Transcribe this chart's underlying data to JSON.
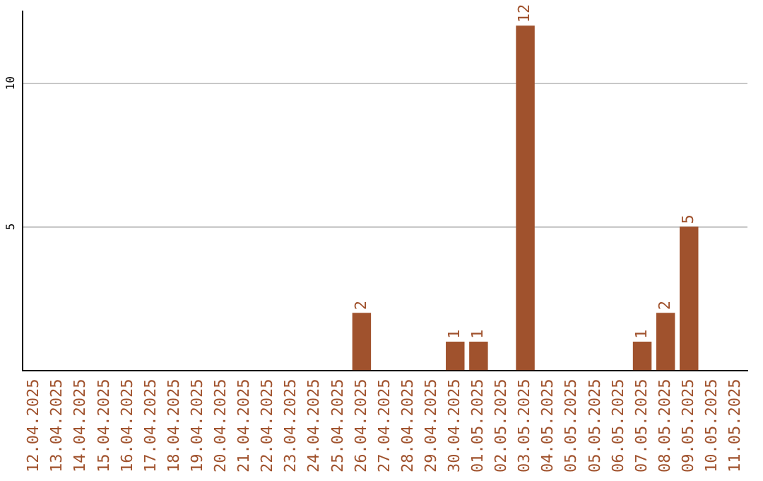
{
  "chart_data": {
    "type": "bar",
    "categories": [
      "12.04.2025",
      "13.04.2025",
      "14.04.2025",
      "15.04.2025",
      "16.04.2025",
      "17.04.2025",
      "18.04.2025",
      "19.04.2025",
      "20.04.2025",
      "21.04.2025",
      "22.04.2025",
      "23.04.2025",
      "24.04.2025",
      "25.04.2025",
      "26.04.2025",
      "27.04.2025",
      "28.04.2025",
      "29.04.2025",
      "30.04.2025",
      "01.05.2025",
      "02.05.2025",
      "03.05.2025",
      "04.05.2025",
      "05.05.2025",
      "05.05.2025",
      "06.05.2025",
      "07.05.2025",
      "08.05.2025",
      "09.05.2025",
      "10.05.2025",
      "11.05.2025"
    ],
    "values": [
      0,
      0,
      0,
      0,
      0,
      0,
      0,
      0,
      0,
      0,
      0,
      0,
      0,
      0,
      2,
      0,
      0,
      0,
      1,
      1,
      0,
      12,
      0,
      0,
      0,
      0,
      1,
      2,
      5,
      0,
      0
    ],
    "value_labels": [
      null,
      null,
      null,
      null,
      null,
      null,
      null,
      null,
      null,
      null,
      null,
      null,
      null,
      null,
      "2",
      null,
      null,
      null,
      "1",
      "1",
      null,
      "12",
      null,
      null,
      null,
      null,
      "1",
      "2",
      "5",
      null,
      null
    ],
    "color": "#a0522d",
    "ylim": [
      0,
      12.5
    ],
    "yticks": [
      5,
      10
    ],
    "grid": "y",
    "legend": false
  }
}
